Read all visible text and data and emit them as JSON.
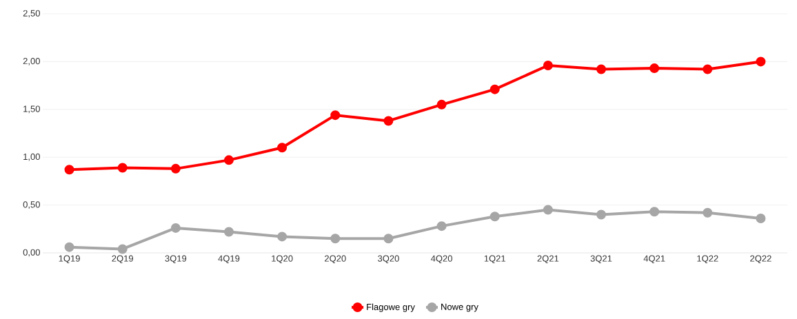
{
  "chart_data": {
    "type": "line",
    "categories": [
      "1Q19",
      "2Q19",
      "3Q19",
      "4Q19",
      "1Q20",
      "2Q20",
      "3Q20",
      "4Q20",
      "1Q21",
      "2Q21",
      "3Q21",
      "4Q21",
      "1Q22",
      "2Q22"
    ],
    "series": [
      {
        "name": "Flagowe gry",
        "color": "#ff0000",
        "values": [
          0.87,
          0.89,
          0.88,
          0.97,
          1.1,
          1.44,
          1.38,
          1.55,
          1.71,
          1.96,
          1.92,
          1.93,
          1.92,
          2.0
        ]
      },
      {
        "name": "Nowe gry",
        "color": "#a6a6a6",
        "values": [
          0.06,
          0.04,
          0.26,
          0.22,
          0.17,
          0.15,
          0.15,
          0.28,
          0.38,
          0.45,
          0.4,
          0.43,
          0.42,
          0.36
        ]
      }
    ],
    "ylim": [
      0,
      2.5
    ],
    "yticks": [
      {
        "value": 0,
        "label": "0,00"
      },
      {
        "value": 0.5,
        "label": "0,50"
      },
      {
        "value": 1,
        "label": "1,00"
      },
      {
        "value": 1.5,
        "label": "1,50"
      },
      {
        "value": 2,
        "label": "2,00"
      },
      {
        "value": 2.5,
        "label": "2,50"
      }
    ],
    "grid": "y",
    "legend": "bottom",
    "marker": "circle",
    "line_style": "solid"
  }
}
